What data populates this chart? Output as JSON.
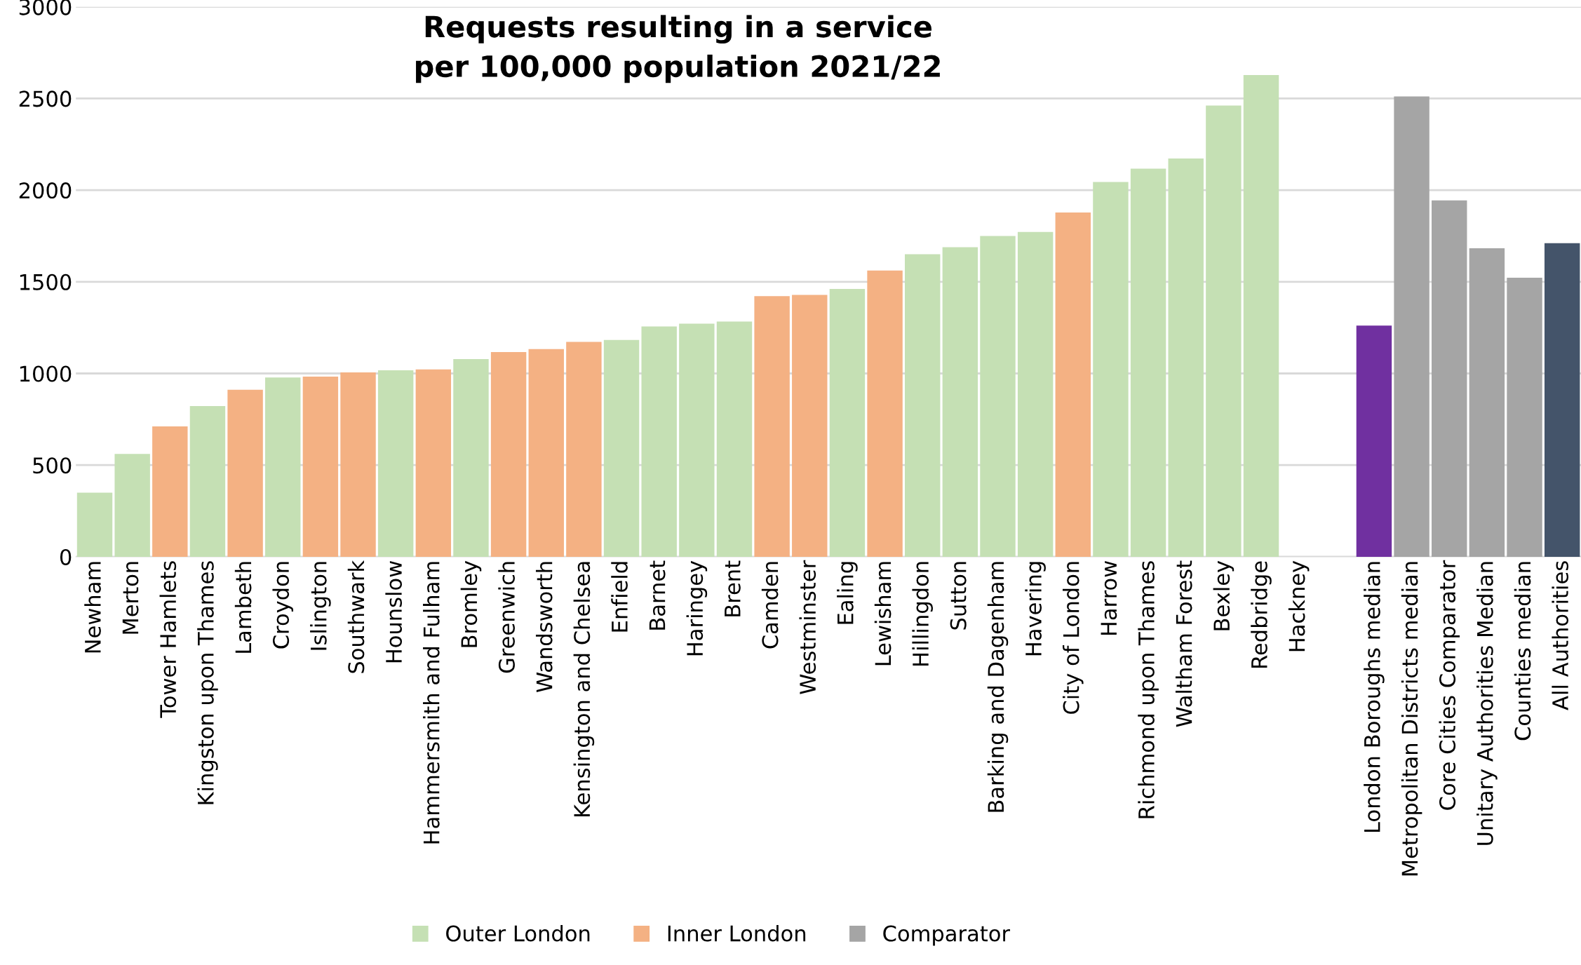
{
  "chart_data": {
    "type": "bar",
    "title": "Requests resulting in a service\nper 100,000 population 2021/22",
    "categories": [
      "Newham",
      "Merton",
      "Tower Hamlets",
      "Kingston upon Thames",
      "Lambeth",
      "Croydon",
      "Islington",
      "Southwark",
      "Hounslow",
      "Hammersmith and Fulham",
      "Bromley",
      "Greenwich",
      "Wandsworth",
      "Kensington and Chelsea",
      "Enfield",
      "Barnet",
      "Haringey",
      "Brent",
      "Camden",
      "Westminster",
      "Ealing",
      "Lewisham",
      "Hillingdon",
      "Sutton",
      "Barking and Dagenham",
      "Havering",
      "City of London",
      "Harrow",
      "Richmond upon Thames",
      "Waltham Forest",
      "Bexley",
      "Redbridge",
      "Hackney",
      null,
      "London Boroughs median",
      "Metropolitan Districts median",
      "Core Cities Comparator",
      "Unitary Authorities Median",
      "Counties median",
      "All Authorities"
    ],
    "series": [
      {
        "name": "Outer London",
        "color": "#c5e0b4",
        "values": [
          350,
          561,
          null,
          822,
          null,
          978,
          null,
          null,
          1017,
          null,
          1078,
          null,
          null,
          null,
          1183,
          1256,
          1272,
          1283,
          null,
          null,
          1461,
          null,
          1650,
          1689,
          1750,
          1772,
          null,
          2044,
          2117,
          2172,
          2461,
          2628,
          null,
          null,
          null,
          null,
          null,
          null,
          null,
          null
        ]
      },
      {
        "name": "Inner London",
        "color": "#f4b183",
        "values": [
          null,
          null,
          711,
          null,
          911,
          null,
          983,
          1006,
          null,
          1022,
          null,
          1117,
          1133,
          1172,
          null,
          null,
          null,
          null,
          1422,
          1428,
          null,
          1561,
          null,
          null,
          null,
          null,
          1878,
          null,
          null,
          null,
          null,
          null,
          null,
          null,
          null,
          null,
          null,
          null,
          null,
          null
        ]
      },
      {
        "name": "Comparator",
        "color": "#a5a5a5",
        "values": [
          null,
          null,
          null,
          null,
          null,
          null,
          null,
          null,
          null,
          null,
          null,
          null,
          null,
          null,
          null,
          null,
          null,
          null,
          null,
          null,
          null,
          null,
          null,
          null,
          null,
          null,
          null,
          null,
          null,
          null,
          null,
          null,
          null,
          null,
          null,
          2511,
          1944,
          1683,
          1522,
          null
        ]
      },
      {
        "color": "#7030a0",
        "values": [
          null,
          null,
          null,
          null,
          null,
          null,
          null,
          null,
          null,
          null,
          null,
          null,
          null,
          null,
          null,
          null,
          null,
          null,
          null,
          null,
          null,
          null,
          null,
          null,
          null,
          null,
          null,
          null,
          null,
          null,
          null,
          null,
          null,
          null,
          1261,
          null,
          null,
          null,
          null,
          null
        ]
      },
      {
        "color": "#44546a",
        "values": [
          null,
          null,
          null,
          null,
          null,
          null,
          null,
          null,
          null,
          null,
          null,
          null,
          null,
          null,
          null,
          null,
          null,
          null,
          null,
          null,
          null,
          null,
          null,
          null,
          null,
          null,
          null,
          null,
          null,
          null,
          null,
          null,
          null,
          null,
          null,
          null,
          null,
          null,
          null,
          1711
        ]
      }
    ],
    "ylim": [
      0,
      3000
    ],
    "yticks": [
      0,
      500,
      1000,
      1500,
      2000,
      2500,
      3000
    ],
    "grid": "y",
    "legend": "bottom"
  }
}
